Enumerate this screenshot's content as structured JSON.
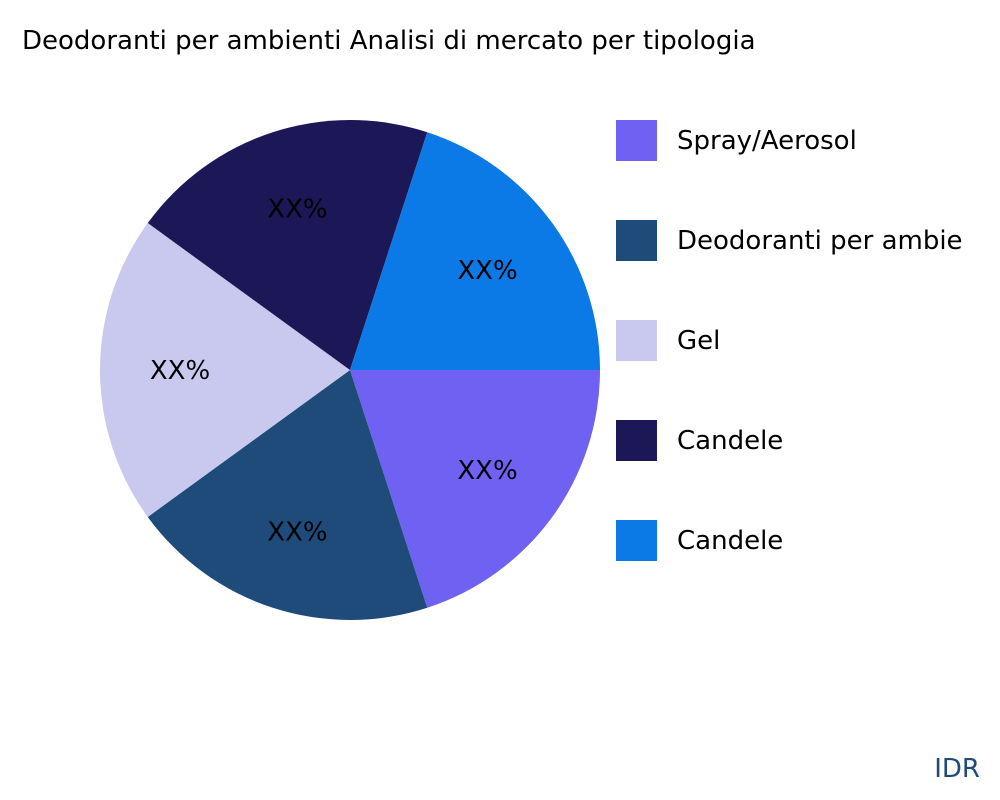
{
  "title": "Deodoranti per ambienti Analisi di mercato per tipologia",
  "watermark": "IDR",
  "chart_data": {
    "type": "pie",
    "title": "Deodoranti per ambienti Analisi di mercato per tipologia",
    "categories": [
      "Spray/Aerosol",
      "Deodoranti per ambie",
      "Gel",
      "Candele",
      "Candele"
    ],
    "values": [
      20,
      20,
      20,
      20,
      20
    ],
    "data_labels": [
      "XX%",
      "XX%",
      "XX%",
      "XX%",
      "XX%"
    ],
    "colors": [
      "#6f61f2",
      "#1f4b7a",
      "#c9c9f0",
      "#1c1756",
      "#0b79e6"
    ],
    "legend_position": "right"
  }
}
